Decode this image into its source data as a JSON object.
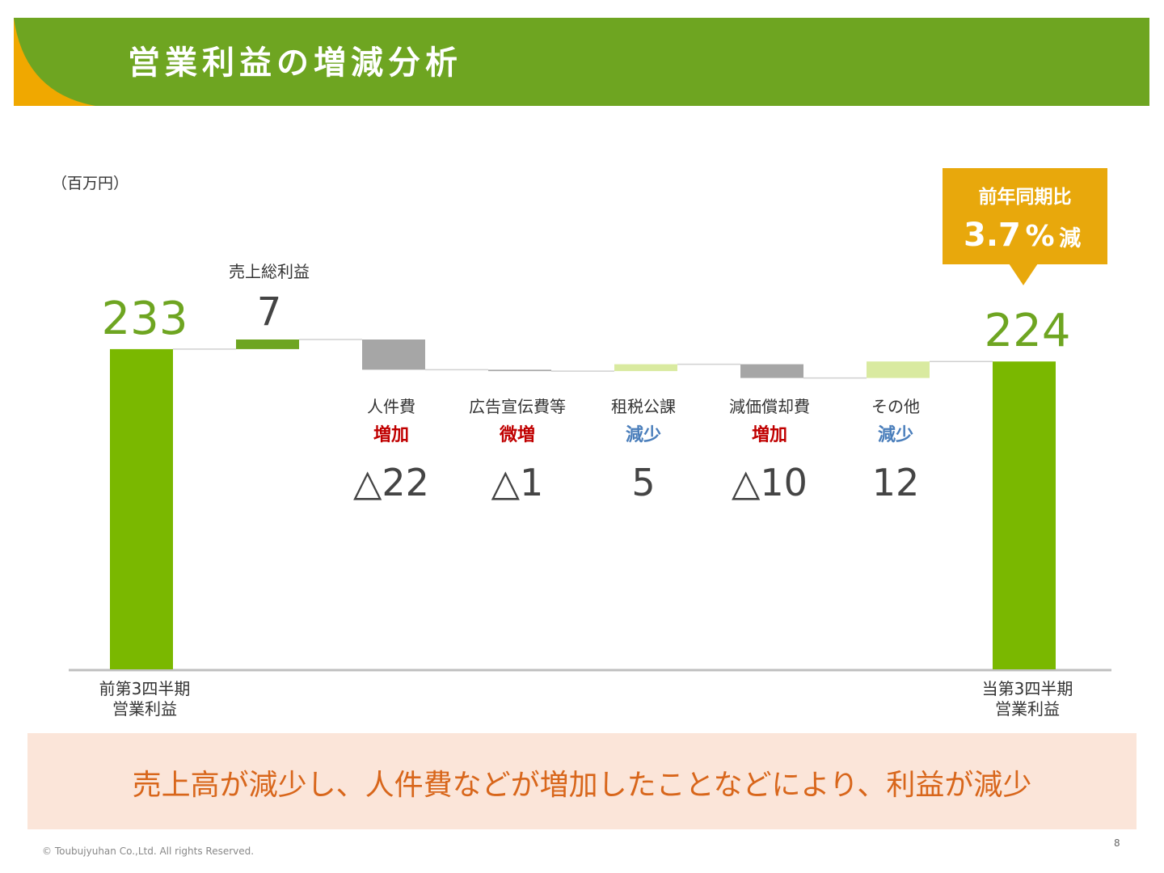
{
  "header": {
    "title": "営業利益の増減分析"
  },
  "chart_data": {
    "type": "waterfall",
    "unit_label": "（百万円）",
    "categories": [
      "前第3四半期\n営業利益",
      "売上総利益",
      "人件費",
      "広告宣伝費等",
      "租税公課",
      "減価償却費",
      "その他",
      "当第3四半期\n営業利益"
    ],
    "values": [
      233,
      7,
      -22,
      -1,
      5,
      -10,
      12,
      224
    ],
    "value_labels": [
      "233",
      "7",
      "△22",
      "△1",
      "5",
      "△10",
      "12",
      "224"
    ],
    "is_total": [
      true,
      false,
      false,
      false,
      false,
      false,
      false,
      true
    ],
    "colors": [
      "#7ab800",
      "#6ea521",
      "#a6a6a6",
      "#a6a6a6",
      "#d9eaa0",
      "#a6a6a6",
      "#d9eaa0",
      "#7ab800"
    ],
    "change_labels": [
      null,
      null,
      "増加",
      "微増",
      "減少",
      "増加",
      "減少",
      null
    ],
    "change_colors": [
      null,
      null,
      "#c00000",
      "#c00000",
      "#4a7ebb",
      "#c00000",
      "#4a7ebb",
      null
    ],
    "ylim": [
      0,
      250
    ],
    "callout": {
      "label": "前年同期比",
      "value": 3.7,
      "unit": "%",
      "suffix": "減"
    }
  },
  "summary": "売上高が減少し、人件費などが増加したことなどにより、利益が減少",
  "footer": {
    "copyright": "© Toubujyuhan Co.,Ltd. All rights Reserved.",
    "page": "8"
  }
}
